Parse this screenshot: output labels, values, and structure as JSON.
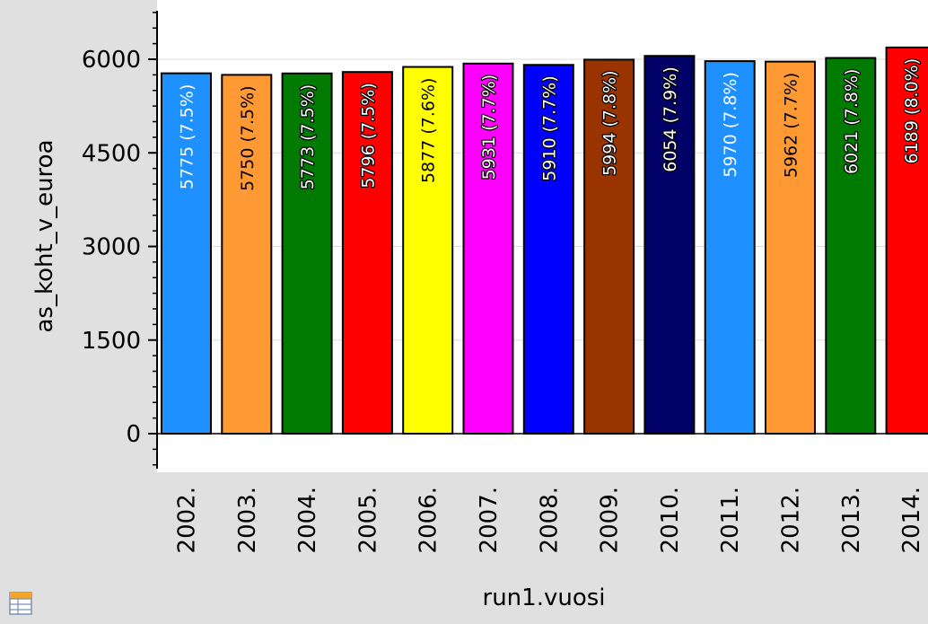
{
  "chart_data": {
    "type": "bar",
    "xlabel": "run1.vuosi",
    "ylabel": "as_koht_v_euroa",
    "ylim": [
      -500,
      6800
    ],
    "yticks": [
      0,
      1500,
      3000,
      4500,
      6000
    ],
    "yticks_labels": [
      "0",
      "1500",
      "3000",
      "4500",
      "6000"
    ],
    "grid": true,
    "categories": [
      "2002.",
      "2003.",
      "2004.",
      "2005.",
      "2006.",
      "2007.",
      "2008.",
      "2009.",
      "2010.",
      "2011.",
      "2012.",
      "2013.",
      "2014."
    ],
    "values": [
      5775,
      5750,
      5773,
      5796,
      5877,
      5931,
      5910,
      5994,
      6054,
      5970,
      5962,
      6021,
      6189
    ],
    "data_labels": [
      "5775 (7.5%)",
      "5750 (7.5%)",
      "5773 (7.5%)",
      "5796 (7.5%)",
      "5877 (7.6%)",
      "5931 (7.7%)",
      "5910 (7.7%)",
      "5994 (7.8%)",
      "6054 (7.9%)",
      "5970 (7.8%)",
      "5962 (7.7%)",
      "6021 (7.8%)",
      "6189 (8.0%)"
    ],
    "colors": [
      "#1e90ff",
      "#ff9933",
      "#007a00",
      "#ff0000",
      "#ffff00",
      "#ff00ff",
      "#0000ff",
      "#993300",
      "#000066",
      "#1e90ff",
      "#ff9933",
      "#007a00",
      "#ff0000"
    ],
    "label_colors": [
      "#ffffff",
      "#000000",
      "#ffffff",
      "#ffffff",
      "#000000",
      "#ffffff",
      "#ffffff",
      "#ffffff",
      "#ffffff",
      "#ffffff",
      "#000000",
      "#ffffff",
      "#ffffff"
    ],
    "label_outline_colors": [
      "none",
      "none",
      "#000000",
      "#000000",
      "none",
      "#000000",
      "#000000",
      "#000000",
      "#000000",
      "none",
      "none",
      "#000000",
      "#000000"
    ]
  },
  "toolbar": {
    "table_icon": "table-icon"
  }
}
